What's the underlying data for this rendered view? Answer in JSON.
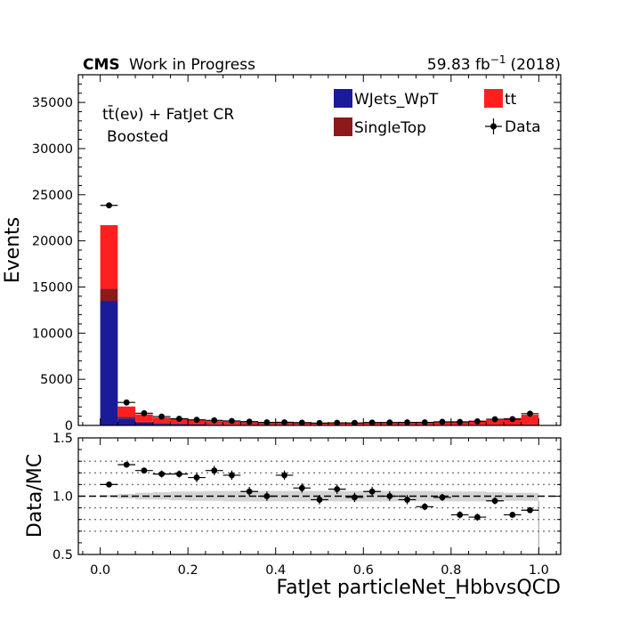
{
  "header": {
    "experiment": "CMS",
    "status": "Work in Progress",
    "lumi": "59.83 fb",
    "lumi_exp": "−1",
    "year": "(2018)"
  },
  "region": {
    "line1": "tt̄(eν) + FatJet CR",
    "line2": "Boosted"
  },
  "legend": {
    "wjets": "WJets_WpT",
    "singletop": "SingleTop",
    "tt": "tt",
    "data": "Data"
  },
  "colors": {
    "wjets": "#1b1b9a",
    "singletop": "#8b1a1a",
    "tt": "#ff1f1f",
    "data": "#000000",
    "unc_band": "#d4d4d4"
  },
  "chart_data": [
    {
      "type": "bar",
      "stacked": true,
      "xlabel": "FatJet particleNet_HbbvsQCD",
      "ylabel": "Events",
      "xlim": [
        -0.05,
        1.05
      ],
      "ylim": [
        0,
        38000
      ],
      "yticks": [
        0,
        5000,
        10000,
        15000,
        20000,
        25000,
        30000,
        35000
      ],
      "bin_edges": [
        0,
        0.04,
        0.08,
        0.12,
        0.16,
        0.2,
        0.24,
        0.28,
        0.32,
        0.36,
        0.4,
        0.44,
        0.48,
        0.52,
        0.56,
        0.6,
        0.64,
        0.68,
        0.72,
        0.76,
        0.8,
        0.84,
        0.88,
        0.92,
        0.96,
        1.0
      ],
      "series": [
        {
          "name": "WJets_WpT",
          "values": [
            13500,
            750,
            300,
            180,
            130,
            100,
            80,
            70,
            60,
            50,
            45,
            40,
            40,
            35,
            35,
            35,
            35,
            35,
            35,
            35,
            35,
            35,
            35,
            40,
            50
          ]
        },
        {
          "name": "SingleTop",
          "values": [
            1300,
            200,
            100,
            70,
            60,
            50,
            45,
            40,
            40,
            35,
            35,
            30,
            30,
            30,
            30,
            30,
            30,
            30,
            30,
            30,
            35,
            40,
            45,
            50,
            60
          ]
        },
        {
          "name": "tt",
          "values": [
            6900,
            1100,
            800,
            600,
            500,
            430,
            350,
            300,
            250,
            230,
            210,
            200,
            200,
            200,
            210,
            230,
            250,
            270,
            300,
            330,
            380,
            450,
            530,
            700,
            1040
          ]
        }
      ],
      "data": {
        "name": "Data",
        "x": [
          0.02,
          0.06,
          0.1,
          0.14,
          0.18,
          0.22,
          0.26,
          0.3,
          0.34,
          0.38,
          0.42,
          0.46,
          0.5,
          0.54,
          0.58,
          0.62,
          0.66,
          0.7,
          0.74,
          0.78,
          0.82,
          0.86,
          0.9,
          0.94,
          0.98
        ],
        "y": [
          23850,
          2490,
          1320,
          960,
          720,
          610,
          550,
          480,
          410,
          330,
          340,
          300,
          260,
          285,
          270,
          310,
          320,
          330,
          330,
          390,
          380,
          440,
          670,
          690,
          1270
        ]
      }
    },
    {
      "type": "scatter",
      "xlabel": "FatJet particleNet_HbbvsQCD",
      "ylabel": "Data/MC",
      "xlim": [
        -0.05,
        1.05
      ],
      "ylim": [
        0.5,
        1.5
      ],
      "yticks": [
        0.5,
        1.0,
        1.5
      ],
      "reference_lines": [
        0.7,
        0.8,
        0.9,
        1.0,
        1.1,
        1.2,
        1.3
      ],
      "ratio": {
        "x": [
          0.02,
          0.06,
          0.1,
          0.14,
          0.18,
          0.22,
          0.26,
          0.3,
          0.34,
          0.38,
          0.42,
          0.46,
          0.5,
          0.54,
          0.58,
          0.62,
          0.66,
          0.7,
          0.74,
          0.78,
          0.82,
          0.86,
          0.9,
          0.94,
          0.98
        ],
        "y": [
          1.1,
          1.27,
          1.22,
          1.19,
          1.19,
          1.16,
          1.22,
          1.18,
          1.04,
          1.0,
          1.18,
          1.07,
          0.97,
          1.06,
          0.99,
          1.04,
          1.0,
          0.97,
          0.91,
          0.99,
          0.84,
          0.82,
          0.96,
          0.84,
          0.88
        ],
        "yerr": [
          0.01,
          0.02,
          0.02,
          0.03,
          0.03,
          0.04,
          0.04,
          0.04,
          0.04,
          0.04,
          0.04,
          0.04,
          0.04,
          0.04,
          0.04,
          0.04,
          0.04,
          0.04,
          0.03,
          0.03,
          0.03,
          0.03,
          0.03,
          0.02,
          0.02
        ]
      },
      "uncertainty_band": {
        "lo": [
          0.99,
          0.98,
          0.97,
          0.97,
          0.965,
          0.96,
          0.96,
          0.955,
          0.955,
          0.955,
          0.955,
          0.955,
          0.955,
          0.955,
          0.955,
          0.955,
          0.955,
          0.955,
          0.955,
          0.955,
          0.955,
          0.955,
          0.96,
          0.96,
          0.96
        ],
        "hi": [
          1.01,
          1.02,
          1.03,
          1.035,
          1.04,
          1.04,
          1.045,
          1.045,
          1.045,
          1.045,
          1.045,
          1.045,
          1.045,
          1.045,
          1.045,
          1.045,
          1.045,
          1.045,
          1.045,
          1.04,
          1.04,
          1.04,
          1.035,
          1.03,
          1.03
        ]
      }
    }
  ]
}
